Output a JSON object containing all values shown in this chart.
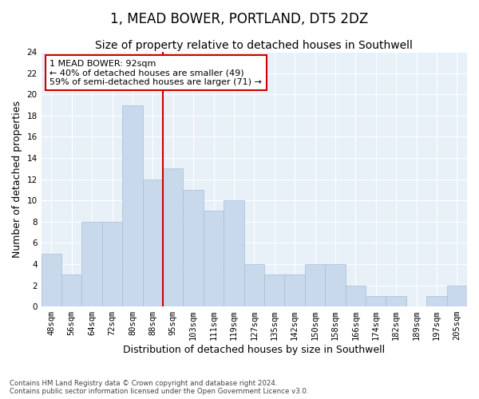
{
  "title": "1, MEAD BOWER, PORTLAND, DT5 2DZ",
  "subtitle": "Size of property relative to detached houses in Southwell",
  "xlabel": "Distribution of detached houses by size in Southwell",
  "ylabel": "Number of detached properties",
  "categories": [
    "48sqm",
    "56sqm",
    "64sqm",
    "72sqm",
    "80sqm",
    "88sqm",
    "95sqm",
    "103sqm",
    "111sqm",
    "119sqm",
    "127sqm",
    "135sqm",
    "142sqm",
    "150sqm",
    "158sqm",
    "166sqm",
    "174sqm",
    "182sqm",
    "189sqm",
    "197sqm",
    "205sqm"
  ],
  "values": [
    5,
    3,
    8,
    8,
    19,
    12,
    13,
    11,
    9,
    10,
    4,
    3,
    3,
    4,
    4,
    2,
    1,
    1,
    0,
    1,
    2
  ],
  "bar_color": "#c8d9ec",
  "bar_edge_color": "#aabdd6",
  "annotation_text": "1 MEAD BOWER: 92sqm\n← 40% of detached houses are smaller (49)\n59% of semi-detached houses are larger (71) →",
  "annotation_box_color": "#ffffff",
  "annotation_box_edge_color": "#cc0000",
  "ylim": [
    0,
    24
  ],
  "yticks": [
    0,
    2,
    4,
    6,
    8,
    10,
    12,
    14,
    16,
    18,
    20,
    22,
    24
  ],
  "background_color": "#e8f0f8",
  "grid_color": "#ffffff",
  "title_fontsize": 12,
  "subtitle_fontsize": 10,
  "ylabel_fontsize": 9,
  "xlabel_fontsize": 9,
  "tick_fontsize": 7.5,
  "footer_line1": "Contains HM Land Registry data © Crown copyright and database right 2024.",
  "footer_line2": "Contains public sector information licensed under the Open Government Licence v3.0."
}
